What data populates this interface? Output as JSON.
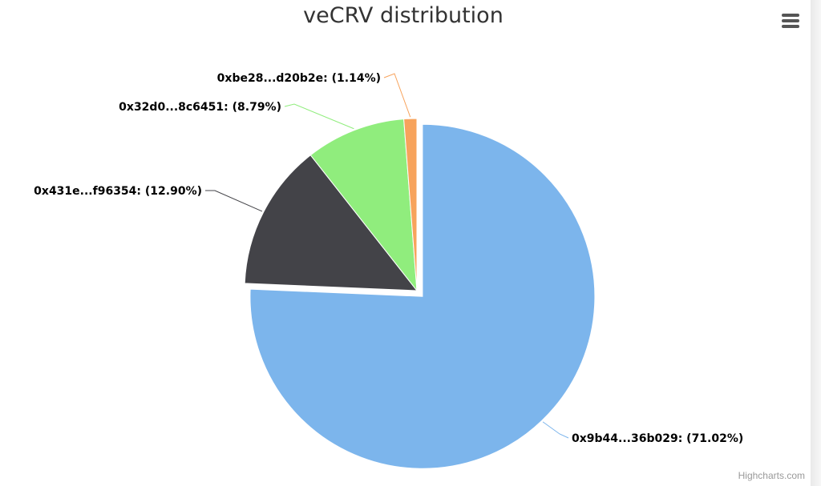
{
  "title": "veCRV distribution",
  "credits": "Highcharts.com",
  "menu_icon": "hamburger-menu-icon",
  "chart_data": {
    "type": "pie",
    "title": "veCRV distribution",
    "series": [
      {
        "data": [
          {
            "name": "0x9b44...36b029",
            "y": 71.02,
            "label": "0x9b44...36b029: (71.02%)",
            "color": "#7cb5ec"
          },
          {
            "name": "0x431e...f96354",
            "y": 12.9,
            "label": "0x431e...f96354: (12.90%)",
            "color": "#434348"
          },
          {
            "name": "0x32d0...8c6451",
            "y": 8.79,
            "label": "0x32d0...8c6451: (8.79%)",
            "color": "#90ed7d"
          },
          {
            "name": "0xbe28...d20b2e",
            "y": 1.14,
            "label": "0xbe28...d20b2e: (1.14%)",
            "color": "#f7a35c"
          }
        ]
      }
    ]
  }
}
